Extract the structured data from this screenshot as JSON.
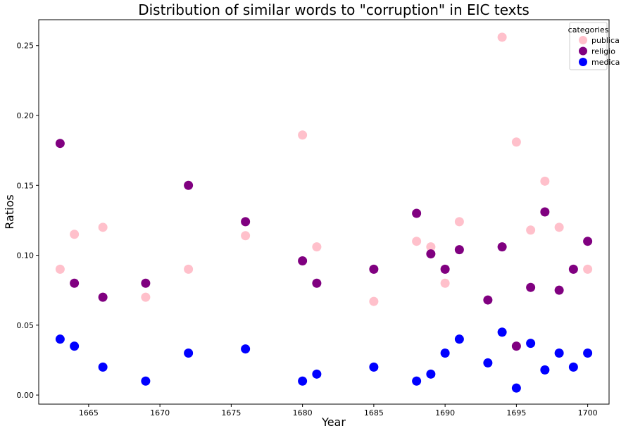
{
  "chart_data": {
    "type": "scatter",
    "title": "Distribution of similar words to \"corruption\" in EIC texts",
    "xlabel": "Year",
    "ylabel": "Ratios",
    "xlim": [
      1661.5,
      1701.5
    ],
    "ylim": [
      -0.0065,
      0.2685
    ],
    "xticks": [
      1665,
      1670,
      1675,
      1680,
      1685,
      1690,
      1695,
      1700
    ],
    "yticks": [
      0.0,
      0.05,
      0.1,
      0.15,
      0.2,
      0.25
    ],
    "ytick_labels": [
      "0.00",
      "0.05",
      "0.10",
      "0.15",
      "0.20",
      "0.25"
    ],
    "grid": false,
    "legend": {
      "title": "categories",
      "placement": "top-right"
    },
    "series": [
      {
        "name": "publica",
        "color": "#ffc0cb",
        "points": [
          [
            1663,
            0.09
          ],
          [
            1664,
            0.115
          ],
          [
            1666,
            0.12
          ],
          [
            1669,
            0.07
          ],
          [
            1672,
            0.09
          ],
          [
            1676,
            0.114
          ],
          [
            1680,
            0.186
          ],
          [
            1681,
            0.106
          ],
          [
            1685,
            0.067
          ],
          [
            1688,
            0.11
          ],
          [
            1689,
            0.106
          ],
          [
            1690,
            0.08
          ],
          [
            1691,
            0.124
          ],
          [
            1694,
            0.256
          ],
          [
            1695,
            0.181
          ],
          [
            1696,
            0.118
          ],
          [
            1697,
            0.153
          ],
          [
            1698,
            0.12
          ],
          [
            1700,
            0.09
          ]
        ]
      },
      {
        "name": "religio",
        "color": "#800080",
        "points": [
          [
            1663,
            0.18
          ],
          [
            1664,
            0.08
          ],
          [
            1666,
            0.07
          ],
          [
            1669,
            0.08
          ],
          [
            1672,
            0.15
          ],
          [
            1676,
            0.124
          ],
          [
            1680,
            0.096
          ],
          [
            1681,
            0.08
          ],
          [
            1685,
            0.09
          ],
          [
            1688,
            0.13
          ],
          [
            1689,
            0.101
          ],
          [
            1690,
            0.09
          ],
          [
            1691,
            0.104
          ],
          [
            1693,
            0.068
          ],
          [
            1694,
            0.106
          ],
          [
            1695,
            0.035
          ],
          [
            1696,
            0.077
          ],
          [
            1697,
            0.131
          ],
          [
            1698,
            0.075
          ],
          [
            1699,
            0.09
          ],
          [
            1700,
            0.11
          ]
        ]
      },
      {
        "name": "medica",
        "color": "#0000ff",
        "points": [
          [
            1663,
            0.04
          ],
          [
            1664,
            0.035
          ],
          [
            1666,
            0.02
          ],
          [
            1669,
            0.01
          ],
          [
            1672,
            0.03
          ],
          [
            1676,
            0.033
          ],
          [
            1680,
            0.01
          ],
          [
            1681,
            0.015
          ],
          [
            1685,
            0.02
          ],
          [
            1688,
            0.01
          ],
          [
            1689,
            0.015
          ],
          [
            1690,
            0.03
          ],
          [
            1691,
            0.04
          ],
          [
            1693,
            0.023
          ],
          [
            1694,
            0.045
          ],
          [
            1695,
            0.005
          ],
          [
            1696,
            0.037
          ],
          [
            1697,
            0.018
          ],
          [
            1698,
            0.03
          ],
          [
            1699,
            0.02
          ],
          [
            1700,
            0.03
          ]
        ]
      }
    ]
  }
}
